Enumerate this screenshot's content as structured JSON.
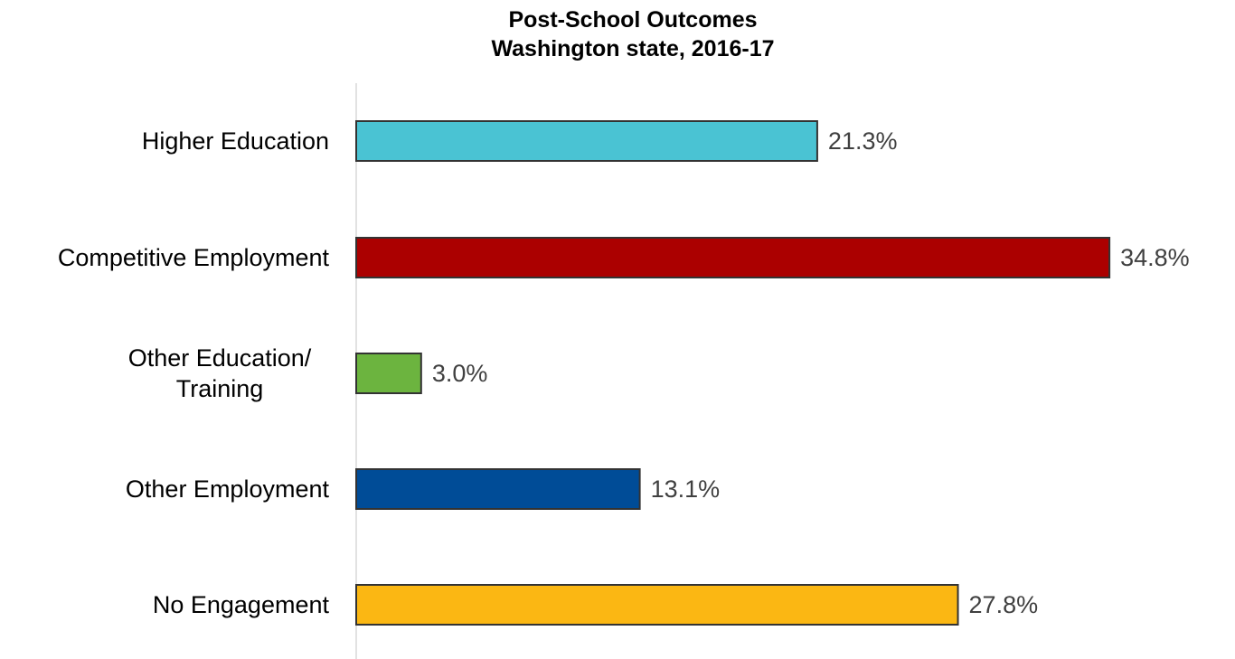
{
  "chart_data": {
    "type": "bar",
    "orientation": "horizontal",
    "title": [
      "Post-School Outcomes",
      "Washington state, 2016-17"
    ],
    "categories": [
      [
        "Higher Education"
      ],
      [
        "Competitive Employment"
      ],
      [
        "Other Education/",
        "Training"
      ],
      [
        "Other Employment"
      ],
      [
        "No Engagement"
      ]
    ],
    "values": [
      21.3,
      34.8,
      3.0,
      13.1,
      27.8
    ],
    "value_labels": [
      "21.3%",
      "34.8%",
      "3.0%",
      "13.1%",
      "27.8%"
    ],
    "colors": [
      "#4ac3d3",
      "#ab0000",
      "#6cb43f",
      "#004c97",
      "#fbb713"
    ],
    "xlim": [
      0,
      35
    ],
    "grid": false,
    "legend": "none"
  }
}
